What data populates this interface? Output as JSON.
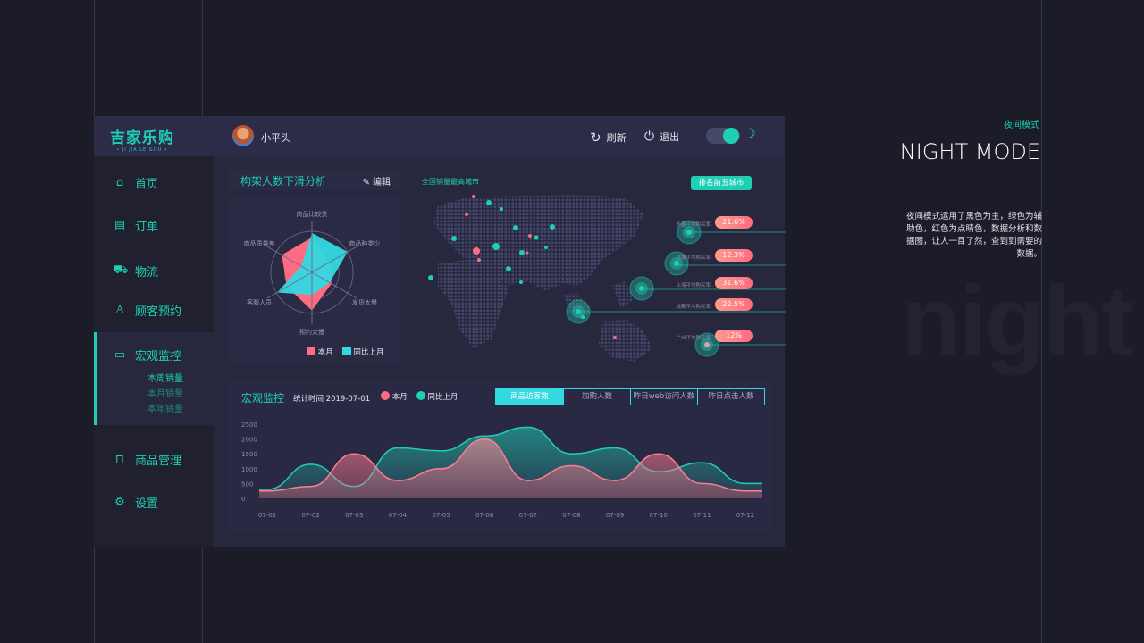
{
  "colors": {
    "accent": "#1ecfb4",
    "cyan": "#33d9e0",
    "pink": "#ff6b81",
    "background": "#1c1c28"
  },
  "header": {
    "logo": "吉家乐购",
    "logo_sub": "• JI JIA LE GOU •",
    "username": "小平头",
    "refresh": "刷新",
    "logout": "退出",
    "night_toggle_on": true
  },
  "sidebar": {
    "items": [
      {
        "label": "首页",
        "icon": "home-icon"
      },
      {
        "label": "订单",
        "icon": "clipboard-icon"
      },
      {
        "label": "物流",
        "icon": "truck-icon"
      },
      {
        "label": "顾客预约",
        "icon": "user-icon"
      },
      {
        "label": "宏观监控",
        "icon": "monitor-icon",
        "active": true,
        "children": [
          "本周销量",
          "本月销量",
          "本年销量"
        ]
      },
      {
        "label": "商品管理",
        "icon": "bag-icon"
      },
      {
        "label": "设置",
        "icon": "gear-icon"
      }
    ]
  },
  "radar": {
    "title": "构架人数下滑分析",
    "edit": "编辑",
    "chart_data": {
      "type": "radar",
      "indicators": [
        "商品比较贵",
        "商品种类少",
        "发货太慢",
        "预约太慢",
        "客服人员",
        "商品质量差"
      ],
      "series": [
        {
          "name": "本月",
          "color": "#ff6b81",
          "values": [
            85,
            50,
            55,
            93,
            70,
            85
          ]
        },
        {
          "name": "同比上月",
          "color": "#33d9e0",
          "values": [
            96,
            100,
            50,
            55,
            98,
            30
          ]
        }
      ]
    }
  },
  "map": {
    "title": "全国销量最高城市",
    "button": "排名前五城市",
    "cities": [
      {
        "label": "长春平均购买率",
        "value": "21.6%"
      },
      {
        "label": "运城平均购买率",
        "value": "12.3%"
      },
      {
        "label": "上海平均购买率",
        "value": "31.6%"
      },
      {
        "label": "成都平均购买率",
        "value": "22.5%"
      },
      {
        "label": "广州平均购买率",
        "value": "12%"
      }
    ]
  },
  "monitor": {
    "title": "宏观监控",
    "stat_time": "统计时间 2019-07-01",
    "legend": [
      "本月",
      "同比上月"
    ],
    "tabs": [
      "商品访客数",
      "加购人数",
      "昨日web访问人数",
      "昨日点击人数"
    ],
    "active_tab": 0,
    "chart_data": {
      "type": "area",
      "categories": [
        "07-01",
        "07-02",
        "07-03",
        "07-04",
        "07-05",
        "07-06",
        "07-07",
        "07-08",
        "07-09",
        "07-10",
        "07-11",
        "07-12"
      ],
      "yticks": [
        0,
        500,
        1000,
        1500,
        2000,
        2500
      ],
      "ylim": [
        0,
        2500
      ],
      "series": [
        {
          "name": "本月",
          "color": "#ff6b81",
          "values": [
            250,
            400,
            1500,
            600,
            1000,
            2000,
            600,
            1100,
            600,
            1500,
            500,
            250
          ]
        },
        {
          "name": "同比上月",
          "color": "#33d9e0",
          "values": [
            300,
            1150,
            400,
            1700,
            1600,
            2100,
            2400,
            1500,
            1700,
            900,
            1200,
            500
          ]
        }
      ]
    }
  },
  "side": {
    "mode_label": "夜间模式",
    "heading": "NIGHT MODE",
    "description": "夜间模式运用了黑色为主，绿色为辅助色，红色为点睛色，数据分析和数据图，让人一目了然，查到到需要的数据。",
    "watermark": "night"
  }
}
